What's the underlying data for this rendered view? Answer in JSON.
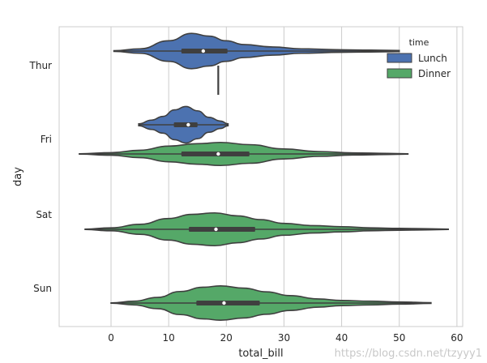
{
  "chart_data": {
    "type": "violin",
    "xlabel": "total_bill",
    "ylabel": "day",
    "xlim": [
      -9,
      61
    ],
    "xticks": [
      0,
      10,
      20,
      30,
      40,
      50,
      60
    ],
    "categories": [
      "Thur",
      "Fri",
      "Sat",
      "Sun"
    ],
    "grid": "vertical",
    "legend": {
      "title": "time",
      "placement": "top-right"
    },
    "series": [
      {
        "name": "Lunch",
        "color": "#4c72b0",
        "violins": [
          {
            "category": "Thur",
            "min": 0.5,
            "q1": 12.2,
            "median": 16.0,
            "q3": 20.2,
            "max": 50.0,
            "density": [
              [
                0.5,
                0.02
              ],
              [
                5,
                0.12
              ],
              [
                10,
                0.55
              ],
              [
                14,
                0.95
              ],
              [
                17,
                0.8
              ],
              [
                20,
                0.55
              ],
              [
                23,
                0.35
              ],
              [
                28,
                0.22
              ],
              [
                33,
                0.12
              ],
              [
                40,
                0.07
              ],
              [
                45,
                0.05
              ],
              [
                50,
                0.03
              ]
            ]
          },
          {
            "category": "Fri",
            "min": 4.8,
            "q1": 10.9,
            "median": 13.4,
            "q3": 15.0,
            "max": 20.3,
            "density": [
              [
                4.8,
                0.05
              ],
              [
                7,
                0.25
              ],
              [
                9,
                0.45
              ],
              [
                11,
                0.8
              ],
              [
                13,
                0.98
              ],
              [
                15,
                0.75
              ],
              [
                17,
                0.4
              ],
              [
                19,
                0.2
              ],
              [
                20.3,
                0.05
              ]
            ]
          }
        ]
      },
      {
        "name": "Dinner",
        "color": "#55a868",
        "violins": [
          {
            "category": "Thur",
            "min": 18.6,
            "q1": 18.6,
            "median": 18.6,
            "q3": 18.6,
            "max": 18.6,
            "density": []
          },
          {
            "category": "Fri",
            "min": -5.5,
            "q1": 12.2,
            "median": 18.6,
            "q3": 24.0,
            "max": 51.5,
            "density": [
              [
                -5.5,
                0.01
              ],
              [
                0,
                0.07
              ],
              [
                5,
                0.2
              ],
              [
                10,
                0.42
              ],
              [
                15,
                0.55
              ],
              [
                19,
                0.62
              ],
              [
                24,
                0.5
              ],
              [
                30,
                0.27
              ],
              [
                36,
                0.13
              ],
              [
                42,
                0.06
              ],
              [
                48,
                0.03
              ],
              [
                51.5,
                0.01
              ]
            ]
          },
          {
            "category": "Sat",
            "min": -4.5,
            "q1": 13.5,
            "median": 18.2,
            "q3": 25.0,
            "max": 58.5,
            "density": [
              [
                -4.5,
                0.01
              ],
              [
                0,
                0.08
              ],
              [
                5,
                0.27
              ],
              [
                10,
                0.58
              ],
              [
                14,
                0.8
              ],
              [
                18,
                0.88
              ],
              [
                22,
                0.72
              ],
              [
                26,
                0.52
              ],
              [
                30,
                0.32
              ],
              [
                35,
                0.2
              ],
              [
                40,
                0.14
              ],
              [
                45,
                0.08
              ],
              [
                50,
                0.05
              ],
              [
                55,
                0.03
              ],
              [
                58.5,
                0.01
              ]
            ]
          },
          {
            "category": "Sun",
            "min": 0,
            "q1": 14.8,
            "median": 19.6,
            "q3": 25.8,
            "max": 55.5,
            "density": [
              [
                0,
                0.01
              ],
              [
                4,
                0.1
              ],
              [
                8,
                0.3
              ],
              [
                12,
                0.62
              ],
              [
                16,
                0.85
              ],
              [
                19,
                0.92
              ],
              [
                23,
                0.8
              ],
              [
                27,
                0.6
              ],
              [
                31,
                0.4
              ],
              [
                36,
                0.22
              ],
              [
                40,
                0.14
              ],
              [
                45,
                0.1
              ],
              [
                50,
                0.06
              ],
              [
                55.5,
                0.02
              ]
            ]
          }
        ]
      }
    ]
  },
  "watermark": "https://blog.csdn.net/tzyyy1"
}
